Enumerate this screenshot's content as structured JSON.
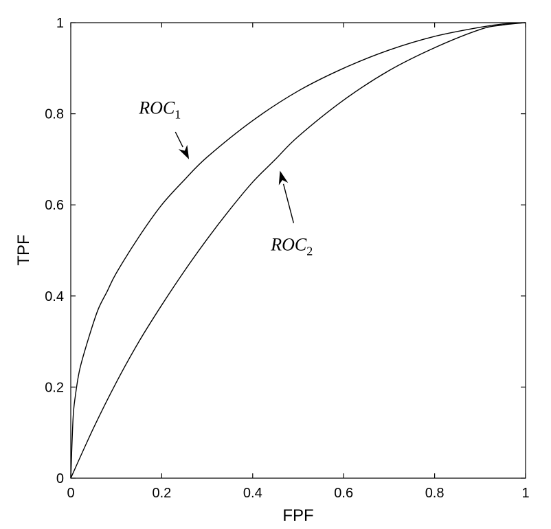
{
  "chart_data": {
    "type": "line",
    "title": "",
    "xlabel": "FPF",
    "ylabel": "TPF",
    "xlim": [
      0,
      1
    ],
    "ylim": [
      0,
      1
    ],
    "xticks": [
      "0",
      "0.2",
      "0.4",
      "0.6",
      "0.8",
      "1"
    ],
    "yticks": [
      "0",
      "0.2",
      "0.4",
      "0.6",
      "0.8",
      "1"
    ],
    "grid": false,
    "series": [
      {
        "label_main": "ROC",
        "label_sub": "1",
        "x": [
          0,
          0.005,
          0.01,
          0.02,
          0.04,
          0.06,
          0.08,
          0.1,
          0.15,
          0.2,
          0.25,
          0.3,
          0.4,
          0.5,
          0.6,
          0.7,
          0.8,
          0.9,
          0.95,
          1.0
        ],
        "y": [
          0,
          0.13,
          0.18,
          0.24,
          0.31,
          0.37,
          0.41,
          0.45,
          0.53,
          0.6,
          0.655,
          0.705,
          0.785,
          0.85,
          0.9,
          0.94,
          0.97,
          0.99,
          0.997,
          1.0
        ]
      },
      {
        "label_main": "ROC",
        "label_sub": "2",
        "x": [
          0,
          0.05,
          0.1,
          0.15,
          0.2,
          0.25,
          0.3,
          0.35,
          0.4,
          0.45,
          0.5,
          0.6,
          0.7,
          0.8,
          0.9,
          0.95,
          1.0
        ],
        "y": [
          0,
          0.11,
          0.21,
          0.3,
          0.38,
          0.455,
          0.525,
          0.59,
          0.65,
          0.7,
          0.75,
          0.83,
          0.895,
          0.945,
          0.985,
          0.995,
          1.0
        ]
      }
    ],
    "annotations": [
      {
        "series": 0,
        "label_x": 0.15,
        "label_y": 0.8,
        "arrow_from": [
          0.23,
          0.76
        ],
        "arrow_to": [
          0.26,
          0.7
        ]
      },
      {
        "series": 1,
        "label_x": 0.44,
        "label_y": 0.5,
        "arrow_from": [
          0.49,
          0.56
        ],
        "arrow_to": [
          0.46,
          0.675
        ]
      }
    ]
  }
}
